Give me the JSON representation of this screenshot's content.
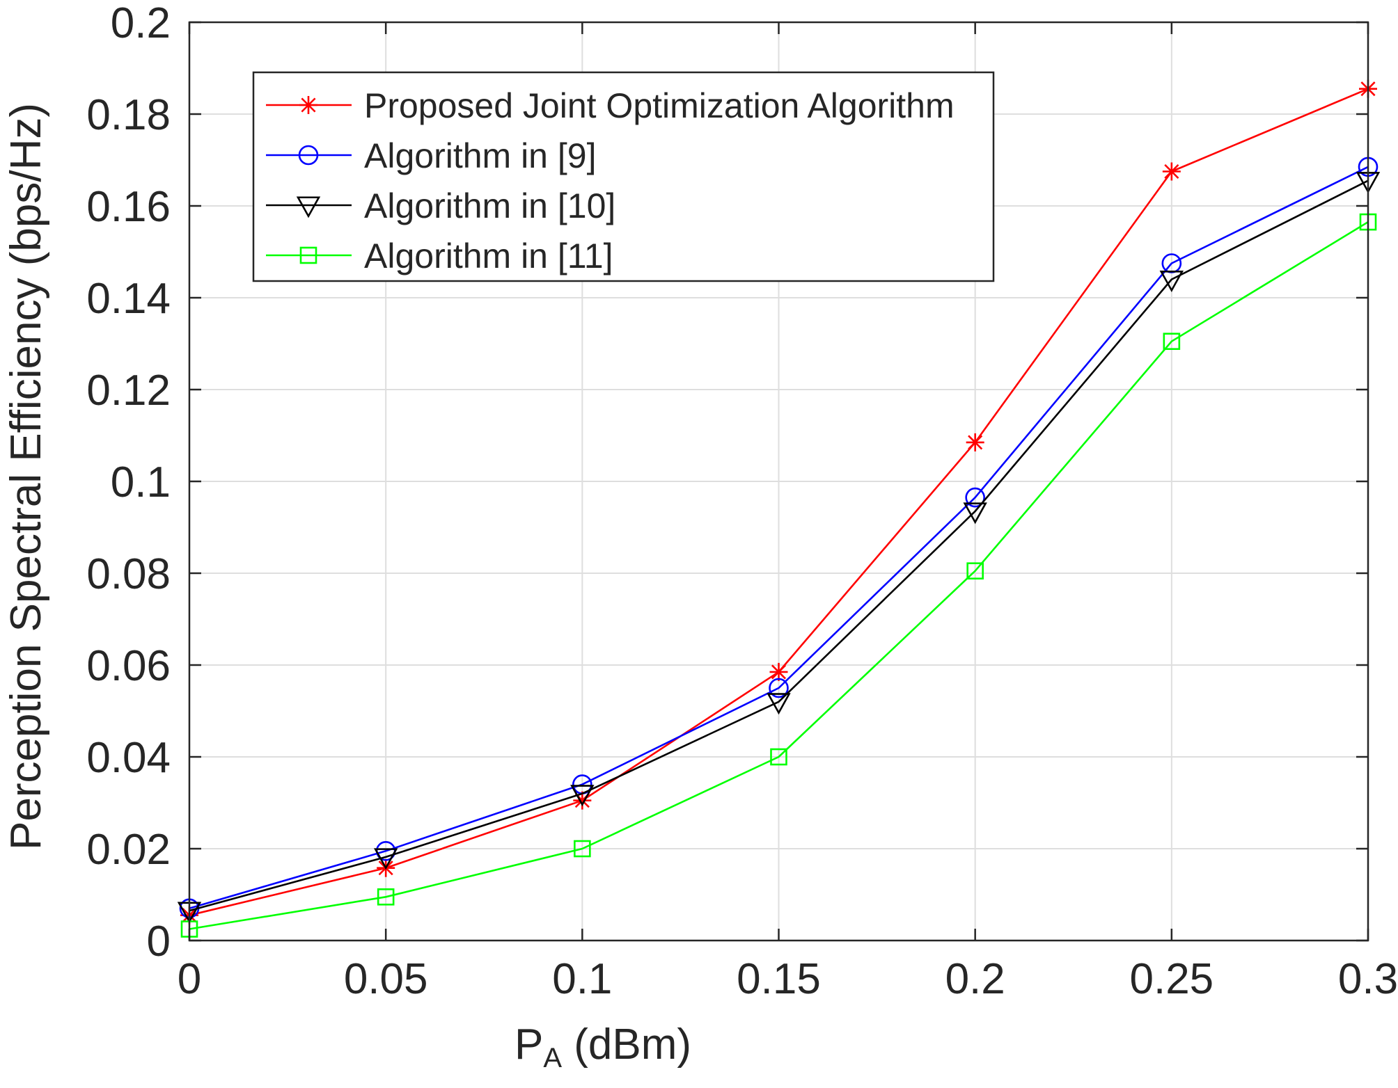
{
  "chart_data": {
    "type": "line",
    "title": "",
    "xlabel": {
      "main": "P",
      "sub": "A",
      "suffix": " (dBm)"
    },
    "ylabel": "Perception Spectral Efficiency (bps/Hz)",
    "xlim": [
      0,
      0.3
    ],
    "ylim": [
      0,
      0.2
    ],
    "x": [
      0,
      0.05,
      0.1,
      0.15,
      0.2,
      0.25,
      0.3
    ],
    "x_ticks": [
      0,
      0.05,
      0.1,
      0.15,
      0.2,
      0.25,
      0.3
    ],
    "x_tick_labels": [
      "0",
      "0.05",
      "0.1",
      "0.15",
      "0.2",
      "0.25",
      "0.3"
    ],
    "y_ticks": [
      0,
      0.02,
      0.04,
      0.06,
      0.08,
      0.1,
      0.12,
      0.14,
      0.16,
      0.18,
      0.2
    ],
    "y_tick_labels": [
      "0",
      "0.02",
      "0.04",
      "0.06",
      "0.08",
      "0.1",
      "0.12",
      "0.14",
      "0.16",
      "0.18",
      "0.2"
    ],
    "grid": true,
    "legend_position": "top-left",
    "series": [
      {
        "name": "Proposed Joint Optimization Algorithm",
        "color": "#ff0000",
        "marker": "asterisk",
        "values": [
          0.0055,
          0.0158,
          0.0305,
          0.0585,
          0.1085,
          0.1675,
          0.1855
        ]
      },
      {
        "name": "Algorithm in [9]",
        "color": "#0000ff",
        "marker": "circle",
        "values": [
          0.007,
          0.0195,
          0.034,
          0.055,
          0.0965,
          0.1475,
          0.1685
        ]
      },
      {
        "name": "Algorithm in [10]",
        "color": "#000000",
        "marker": "triangle-down",
        "values": [
          0.0065,
          0.0182,
          0.032,
          0.052,
          0.0935,
          0.144,
          0.1655
        ]
      },
      {
        "name": "Algorithm in [11]",
        "color": "#00ff00",
        "marker": "square",
        "values": [
          0.0025,
          0.0095,
          0.02,
          0.04,
          0.0805,
          0.1305,
          0.1565
        ]
      }
    ]
  }
}
